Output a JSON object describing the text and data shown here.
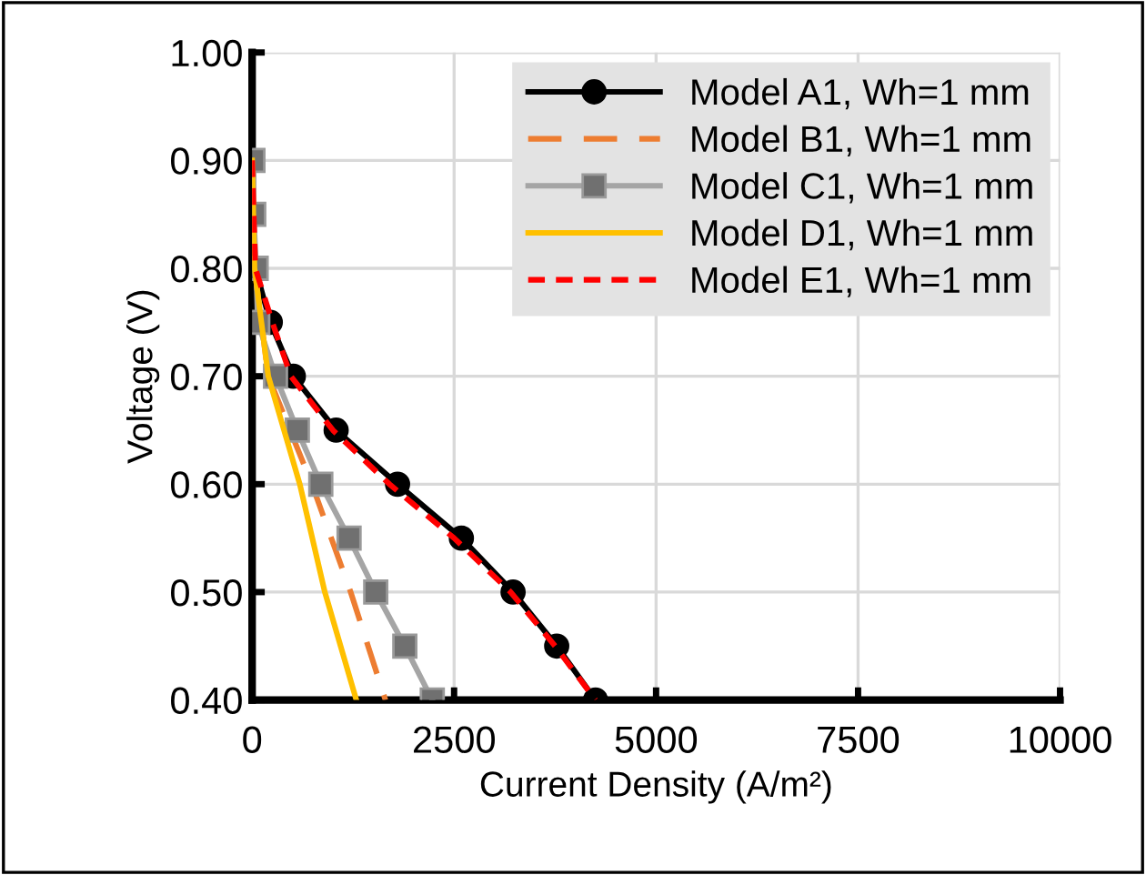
{
  "chart_data": {
    "type": "line",
    "xlabel": "Current Density (A/m²)",
    "ylabel": "Voltage (V)",
    "xlim": [
      0,
      10000
    ],
    "xticks": [
      0,
      2500,
      5000,
      7500,
      10000
    ],
    "ylim": [
      0.4,
      1.0
    ],
    "yticks": [
      {
        "value": 0.4,
        "label": "0.40"
      },
      {
        "value": 0.5,
        "label": "0.50"
      },
      {
        "value": 0.6,
        "label": "0.60"
      },
      {
        "value": 0.7,
        "label": "0.70"
      },
      {
        "value": 0.8,
        "label": "0.80"
      },
      {
        "value": 0.9,
        "label": "0.90"
      },
      {
        "value": 1.0,
        "label": "1.00"
      }
    ],
    "grid": true,
    "legend": "top right",
    "series": [
      {
        "name": "Model A1, Wh=1 mm",
        "color": "#000000",
        "marker": "circle",
        "line_style": "solid",
        "x": [
          0,
          10,
          40,
          225,
          510,
          1040,
          1800,
          2590,
          3230,
          3770,
          4250
        ],
        "values": [
          0.9,
          0.85,
          0.8,
          0.75,
          0.7,
          0.65,
          0.6,
          0.55,
          0.5,
          0.45,
          0.4
        ]
      },
      {
        "name": "Model B1, Wh=1 mm",
        "color": "#ed7d31",
        "marker": "none",
        "line_style": "dashed",
        "x": [
          0,
          30,
          200,
          740,
          1220,
          1650
        ],
        "values": [
          0.9,
          0.8,
          0.7,
          0.6,
          0.5,
          0.4
        ]
      },
      {
        "name": "Model C1, Wh=1 mm",
        "color": "#a5a5a5",
        "marker": "square",
        "line_style": "solid",
        "x": [
          10,
          20,
          50,
          70,
          290,
          560,
          850,
          1200,
          1530,
          1890,
          2230
        ],
        "values": [
          0.9,
          0.85,
          0.8,
          0.75,
          0.7,
          0.65,
          0.6,
          0.55,
          0.5,
          0.45,
          0.4
        ]
      },
      {
        "name": "Model D1, Wh=1 mm",
        "color": "#ffc000",
        "marker": "none",
        "line_style": "solid",
        "x": [
          0,
          30,
          200,
          590,
          900,
          1290
        ],
        "values": [
          0.9,
          0.8,
          0.7,
          0.6,
          0.5,
          0.4
        ]
      },
      {
        "name": "Model E1, Wh=1 mm",
        "color": "#ff0000",
        "marker": "none",
        "line_style": "dotted",
        "x": [
          0,
          40,
          250,
          480,
          1000,
          1700,
          2500,
          3200,
          3750,
          4250
        ],
        "values": [
          0.9,
          0.8,
          0.75,
          0.7,
          0.65,
          0.6,
          0.55,
          0.5,
          0.45,
          0.4
        ]
      }
    ]
  }
}
